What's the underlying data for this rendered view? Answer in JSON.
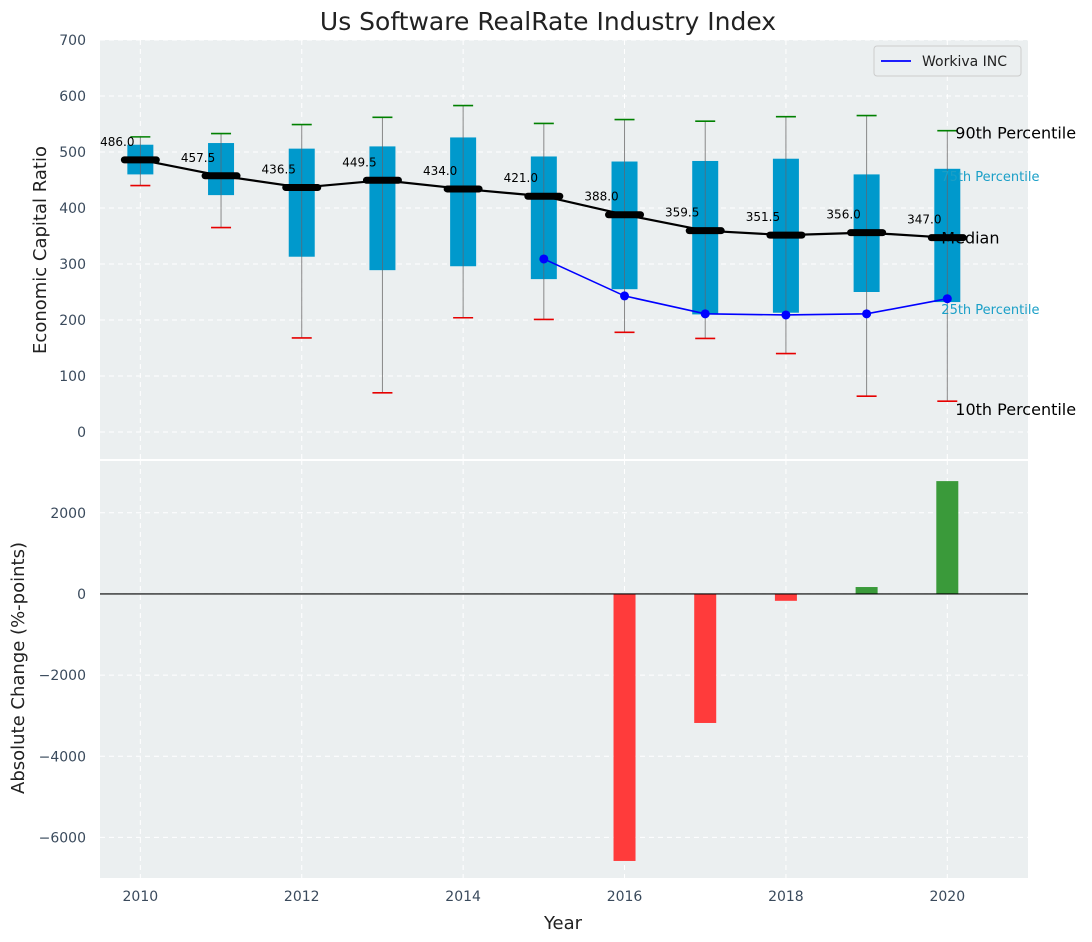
{
  "chart_data": [
    {
      "type": "box",
      "title": "Us Software RealRate Industry Index",
      "ylabel": "Economic Capital Ratio",
      "ylim": [
        -50,
        700
      ],
      "yticks": [
        0,
        100,
        200,
        300,
        400,
        500,
        600,
        700
      ],
      "grid": true,
      "years": [
        2010,
        2011,
        2012,
        2013,
        2014,
        2015,
        2016,
        2017,
        2018,
        2019,
        2020
      ],
      "p10": [
        440,
        365,
        168,
        70,
        204,
        201,
        178,
        167,
        140,
        64,
        55
      ],
      "p25": [
        460,
        423,
        313,
        289,
        296,
        273,
        255,
        210,
        213,
        250,
        232
      ],
      "median": [
        486.0,
        457.5,
        436.5,
        449.5,
        434.0,
        421.0,
        388.0,
        359.5,
        351.5,
        356.0,
        347.0
      ],
      "median_labels": [
        "486.0",
        "457.5",
        "436.5",
        "449.5",
        "434.0",
        "421.0",
        "388.0",
        "359.5",
        "351.5",
        "356.0",
        "347.0"
      ],
      "p75": [
        513,
        516,
        506,
        510,
        526,
        492,
        483,
        484,
        488,
        460,
        470
      ],
      "p90": [
        527,
        533,
        549,
        562,
        583,
        551,
        558,
        555,
        563,
        565,
        538
      ],
      "company_series": {
        "name": "Workiva INC",
        "x": [
          2015,
          2016,
          2017,
          2018,
          2019,
          2020
        ],
        "values": [
          309,
          243,
          211,
          209,
          211,
          238
        ]
      },
      "side_labels": {
        "p90": "90th Percentile",
        "p75": "75th Percentile",
        "median": "Median",
        "p25": "25th Percentile",
        "p10": "10th Percentile"
      },
      "legend": {
        "position": "top-right",
        "entries": [
          "Workiva INC"
        ]
      },
      "colors": {
        "box": "#0099cc",
        "median_line": "#000000",
        "company": "#0000ff",
        "p90_cap": "#008000",
        "p10_cap": "#e60000",
        "whisker": "#888888",
        "background": "#ebeff0"
      }
    },
    {
      "type": "bar",
      "ylabel": "Absolute Change (%-points)",
      "xlabel": "Year",
      "ylim": [
        -7000,
        3300
      ],
      "yticks": [
        -6000,
        -4000,
        -2000,
        0,
        2000
      ],
      "ytick_labels": [
        "−6000",
        "−4000",
        "−2000",
        "0",
        "2000"
      ],
      "x": [
        2016,
        2017,
        2018,
        2019,
        2020
      ],
      "values": [
        -6580,
        -3180,
        -170,
        170,
        2780
      ],
      "xticks": [
        2010,
        2012,
        2014,
        2016,
        2018,
        2020
      ],
      "xlim": [
        2009.5,
        2021
      ],
      "colors": {
        "positive": "#3a9a3a",
        "negative": "#ff3b3b",
        "zero_line": "#000000"
      }
    }
  ]
}
